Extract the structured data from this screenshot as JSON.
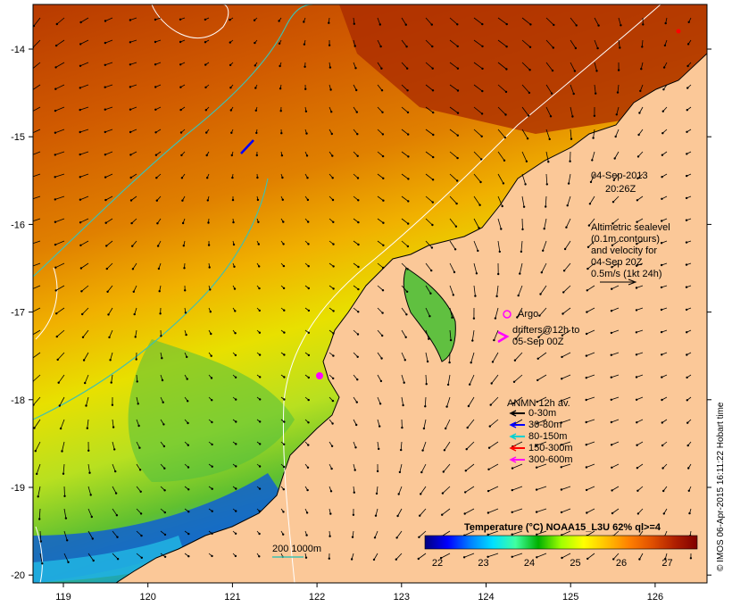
{
  "date_label": {
    "line1": "04-Sep-2013",
    "line2": "20:26Z"
  },
  "altimetry_note": [
    "Altimetric sealevel",
    "(0.1m contours)",
    "and velocity for",
    "04-Sep 20Z",
    "0.5m/s (1kt 24h)"
  ],
  "argo_label": "Argo",
  "drifters_label": [
    "drifters@12h to",
    "05-Sep 00Z"
  ],
  "anmn": {
    "title": "ANMN 12h av.",
    "items": [
      {
        "label": "0-30m",
        "color": "#000000"
      },
      {
        "label": "30-80m",
        "color": "#0000ff"
      },
      {
        "label": "80-150m",
        "color": "#00d0d0"
      },
      {
        "label": "150-300m",
        "color": "#ff0000"
      },
      {
        "label": "300-600m",
        "color": "#ff00ff"
      }
    ]
  },
  "isobath_label": "200  1000m",
  "colorbar": {
    "title": "Temperature (°C) NOAA15_L3U 62% ql>=4",
    "ticks": [
      "22",
      "23",
      "24",
      "25",
      "26",
      "27"
    ],
    "colors": [
      "#00007f",
      "#0000ff",
      "#0080ff",
      "#00e0ff",
      "#40ffa0",
      "#00b000",
      "#a0ff00",
      "#ffff00",
      "#ffc000",
      "#ff8000",
      "#e05000",
      "#b02000",
      "#800000"
    ]
  },
  "axes": {
    "x_ticks": [
      "119",
      "120",
      "121",
      "122",
      "123",
      "124",
      "125",
      "126"
    ],
    "y_ticks": [
      "-14",
      "-15",
      "-16",
      "-17",
      "-18",
      "-19",
      "-20"
    ]
  },
  "credit": "© IMOS 06-Apr-2015 16:11:22 Hobart time",
  "colors": {
    "land": "#fbc898",
    "coast": "#000000",
    "contour": "#ffffff",
    "isobath": "#40c0b0"
  }
}
